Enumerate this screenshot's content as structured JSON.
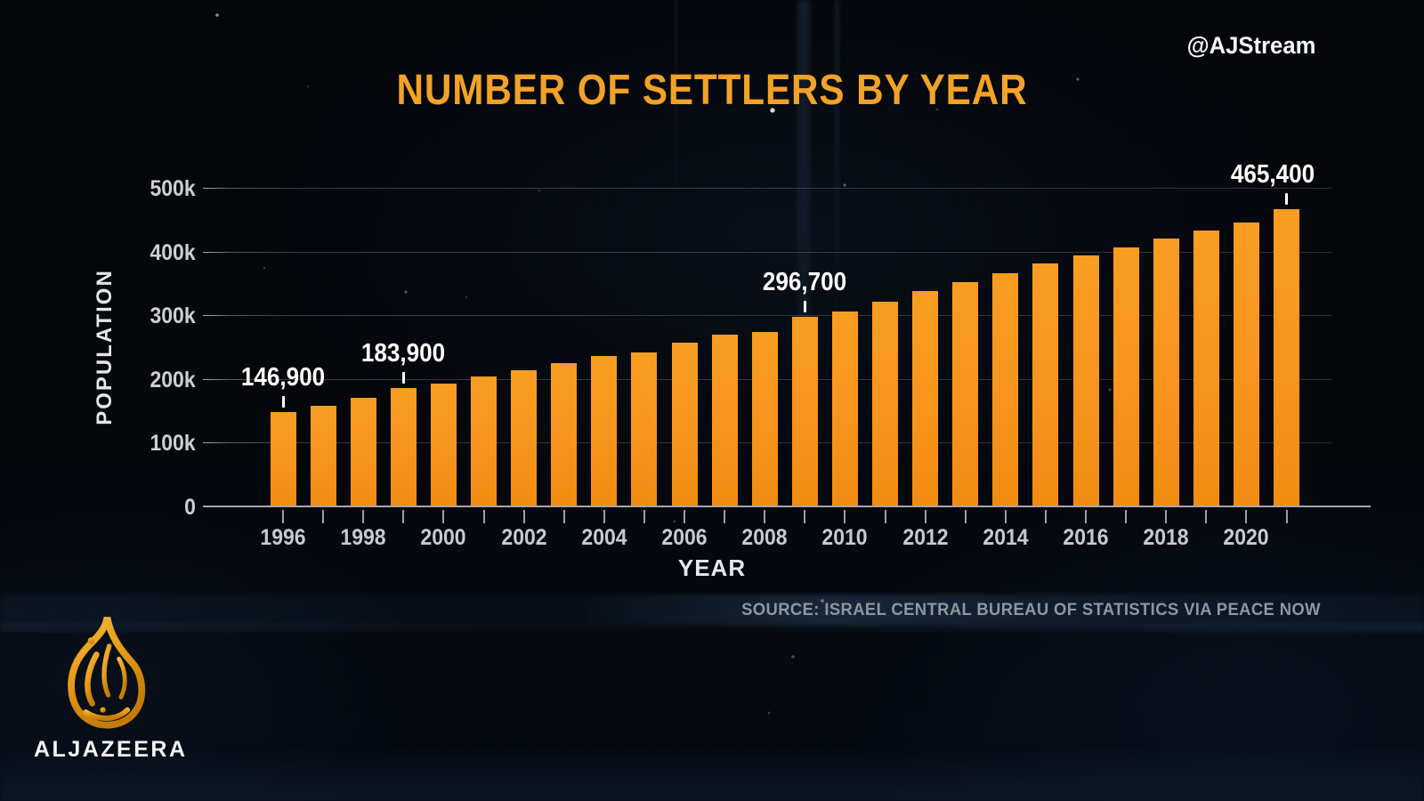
{
  "header": {
    "handle": "@AJStream"
  },
  "chart_data": {
    "type": "bar",
    "title": "NUMBER OF SETTLERS BY YEAR",
    "xlabel": "YEAR",
    "ylabel": "POPULATION",
    "ylim": [
      0,
      500000
    ],
    "grid": "on",
    "legend": "none",
    "bar_color": "#F7941D",
    "ytick_values": [
      0,
      100000,
      200000,
      300000,
      400000,
      500000
    ],
    "ytick_labels": [
      "0",
      "100k",
      "200k",
      "300k",
      "400k",
      "500k"
    ],
    "xtick_years": [
      1996,
      1998,
      2000,
      2002,
      2004,
      2006,
      2008,
      2010,
      2012,
      2014,
      2016,
      2018,
      2020
    ],
    "years": [
      1996,
      1997,
      1998,
      1999,
      2000,
      2001,
      2002,
      2003,
      2004,
      2005,
      2006,
      2007,
      2008,
      2009,
      2010,
      2011,
      2012,
      2013,
      2014,
      2015,
      2016,
      2017,
      2018,
      2019,
      2020,
      2021
    ],
    "values": [
      146900,
      157000,
      169000,
      183900,
      192000,
      202000,
      213000,
      223000,
      234000,
      240000,
      255000,
      268000,
      273000,
      296700,
      305000,
      320000,
      336000,
      350000,
      365000,
      380000,
      392000,
      405000,
      419000,
      432000,
      444000,
      465400
    ],
    "annotations": [
      {
        "year": 1996,
        "label": "146,900"
      },
      {
        "year": 1999,
        "label": "183,900"
      },
      {
        "year": 2009,
        "label": "296,700"
      },
      {
        "year": 2021,
        "label": "465,400"
      }
    ]
  },
  "source": {
    "text": "SOURCE: ISRAEL CENTRAL BUREAU OF STATISTICS VIA PEACE NOW"
  },
  "branding": {
    "wordmark": "ALJAZEERA",
    "logo_icon": "aljazeera-flame-logo"
  },
  "colors": {
    "accent_orange": "#F7941D",
    "title_orange": "#F2A226",
    "background": "#05070B",
    "label_white": "#FFFFFF",
    "axis_gray": "#C6CBD1",
    "source_gray": "#8F969E",
    "logo_gold": "#E89B16"
  }
}
